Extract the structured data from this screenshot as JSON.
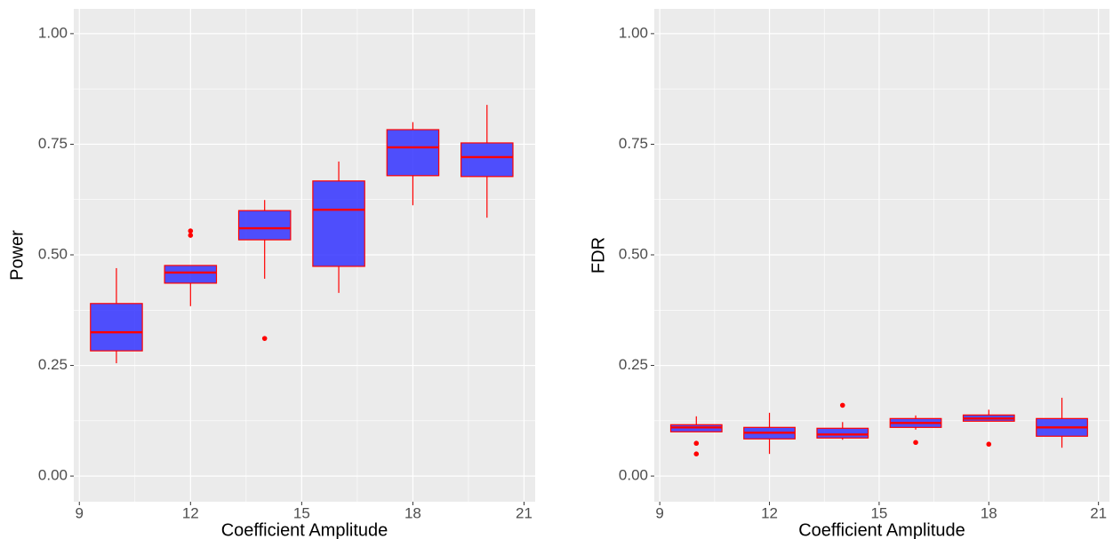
{
  "chart_data": [
    {
      "type": "box",
      "xlabel": "Coefficient Amplitude",
      "ylabel": "Power",
      "x": [
        10,
        12,
        14,
        16,
        18,
        20
      ],
      "boxes": [
        {
          "whisker_low": 0.255,
          "q1": 0.283,
          "median": 0.325,
          "q3": 0.39,
          "whisker_high": 0.47,
          "outliers": []
        },
        {
          "whisker_low": 0.384,
          "q1": 0.436,
          "median": 0.46,
          "q3": 0.476,
          "whisker_high": 0.476,
          "outliers": [
            0.554,
            0.544
          ]
        },
        {
          "whisker_low": 0.446,
          "q1": 0.534,
          "median": 0.56,
          "q3": 0.6,
          "whisker_high": 0.624,
          "outliers": [
            0.311
          ]
        },
        {
          "whisker_low": 0.414,
          "q1": 0.474,
          "median": 0.602,
          "q3": 0.667,
          "whisker_high": 0.711,
          "outliers": []
        },
        {
          "whisker_low": 0.612,
          "q1": 0.679,
          "median": 0.743,
          "q3": 0.783,
          "whisker_high": 0.8,
          "outliers": []
        },
        {
          "whisker_low": 0.584,
          "q1": 0.677,
          "median": 0.721,
          "q3": 0.753,
          "whisker_high": 0.839,
          "outliers": []
        }
      ],
      "fill_color": "#3333ff",
      "line_color": "#ff0000",
      "xlim": [
        8.85,
        21.3
      ],
      "xticks": [
        9,
        12,
        15,
        18,
        21
      ],
      "ylim": [
        -0.058,
        1.056
      ],
      "yticks": [
        {
          "value": 0,
          "label": "0.00"
        },
        {
          "value": 0.25,
          "label": "0.25"
        },
        {
          "value": 0.5,
          "label": "0.50"
        },
        {
          "value": 0.75,
          "label": "0.75"
        },
        {
          "value": 1,
          "label": "1.00"
        }
      ],
      "grid": true
    },
    {
      "type": "box",
      "xlabel": "Coefficient Amplitude",
      "ylabel": "FDR",
      "x": [
        10,
        12,
        14,
        16,
        18,
        20
      ],
      "boxes": [
        {
          "whisker_low": 0.1,
          "q1": 0.1,
          "median": 0.11,
          "q3": 0.116,
          "whisker_high": 0.135,
          "outliers": [
            0.074,
            0.05
          ]
        },
        {
          "whisker_low": 0.05,
          "q1": 0.084,
          "median": 0.098,
          "q3": 0.11,
          "whisker_high": 0.143,
          "outliers": []
        },
        {
          "whisker_low": 0.082,
          "q1": 0.086,
          "median": 0.094,
          "q3": 0.108,
          "whisker_high": 0.122,
          "outliers": [
            0.16
          ]
        },
        {
          "whisker_low": 0.105,
          "q1": 0.11,
          "median": 0.12,
          "q3": 0.13,
          "whisker_high": 0.137,
          "outliers": [
            0.076
          ]
        },
        {
          "whisker_low": 0.124,
          "q1": 0.124,
          "median": 0.13,
          "q3": 0.138,
          "whisker_high": 0.15,
          "outliers": [
            0.072
          ]
        },
        {
          "whisker_low": 0.064,
          "q1": 0.09,
          "median": 0.11,
          "q3": 0.13,
          "whisker_high": 0.177,
          "outliers": []
        }
      ],
      "fill_color": "#3333ff",
      "line_color": "#ff0000",
      "xlim": [
        8.85,
        21.3
      ],
      "xticks": [
        9,
        12,
        15,
        18,
        21
      ],
      "ylim": [
        -0.058,
        1.056
      ],
      "yticks": [
        {
          "value": 0,
          "label": "0.00"
        },
        {
          "value": 0.25,
          "label": "0.25"
        },
        {
          "value": 0.5,
          "label": "0.50"
        },
        {
          "value": 0.75,
          "label": "0.75"
        },
        {
          "value": 1,
          "label": "1.00"
        }
      ],
      "grid": true
    }
  ]
}
